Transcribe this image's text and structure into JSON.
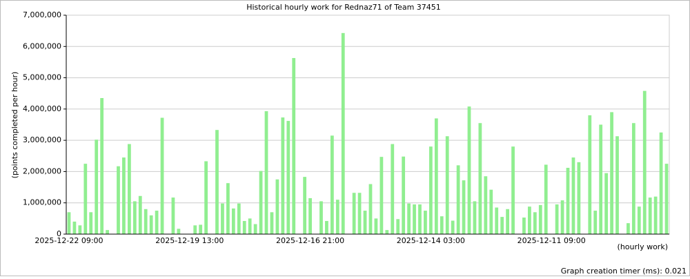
{
  "chart_data": {
    "type": "bar",
    "title": "Historical hourly work for Rednaz71 of Team 37451",
    "y_label": "(points completed per hour)",
    "x_label": "(hourly work)",
    "footer": "Graph creation timer (ms): 0.021",
    "color": "#90ee90",
    "grid": true,
    "categories": [
      "2025-12-22 09:00",
      null,
      null,
      null,
      null,
      null,
      null,
      null,
      null,
      null,
      null,
      null,
      null,
      null,
      null,
      null,
      null,
      null,
      null,
      null,
      null,
      null,
      "2025-12-19 13:00",
      null,
      null,
      null,
      null,
      null,
      null,
      null,
      null,
      null,
      null,
      null,
      null,
      null,
      null,
      null,
      null,
      null,
      null,
      null,
      null,
      null,
      "2025-12-16 21:00",
      null,
      null,
      null,
      null,
      null,
      null,
      null,
      null,
      null,
      null,
      null,
      null,
      null,
      null,
      null,
      null,
      null,
      null,
      null,
      null,
      null,
      "2025-12-14 03:00",
      null,
      null,
      null,
      null,
      null,
      null,
      null,
      null,
      null,
      null,
      null,
      null,
      null,
      null,
      null,
      null,
      null,
      null,
      null,
      null,
      null,
      "2025-12-11 09:00",
      null,
      null,
      null,
      null,
      null,
      null,
      null,
      null,
      null,
      null,
      null,
      null,
      null,
      null,
      null,
      null,
      null,
      null,
      null,
      null,
      null
    ],
    "values": [
      700000,
      400000,
      280000,
      2250000,
      700000,
      3020000,
      4350000,
      130000,
      0,
      2170000,
      2450000,
      2880000,
      1050000,
      1220000,
      800000,
      600000,
      750000,
      3720000,
      0,
      1170000,
      170000,
      0,
      0,
      280000,
      300000,
      2330000,
      0,
      3330000,
      980000,
      1630000,
      820000,
      980000,
      420000,
      500000,
      320000,
      2020000,
      3930000,
      700000,
      1750000,
      3730000,
      3620000,
      5630000,
      0,
      1830000,
      1150000,
      0,
      1050000,
      420000,
      3150000,
      1100000,
      6430000,
      0,
      1320000,
      1320000,
      750000,
      1600000,
      500000,
      2470000,
      130000,
      2880000,
      480000,
      2480000,
      980000,
      950000,
      950000,
      750000,
      2800000,
      3700000,
      570000,
      3130000,
      430000,
      2200000,
      1720000,
      4080000,
      1050000,
      3550000,
      1850000,
      1420000,
      850000,
      550000,
      800000,
      2800000,
      0,
      530000,
      880000,
      700000,
      930000,
      2220000,
      0,
      950000,
      1080000,
      2120000,
      2450000,
      2300000,
      0,
      3800000,
      750000,
      3500000,
      1950000,
      3900000,
      3130000,
      0,
      350000,
      3550000,
      880000,
      4580000,
      1170000,
      1200000,
      3250000,
      2250000
    ],
    "ylim": [
      0,
      7000000
    ],
    "yticks": [
      0,
      {
        "value": 1000000,
        "label": "1,000,000"
      },
      {
        "value": 2000000,
        "label": "2,000,000"
      },
      {
        "value": 3000000,
        "label": "3,000,000"
      },
      {
        "value": 4000000,
        "label": "4,000,000"
      },
      {
        "value": 5000000,
        "label": "5,000,000"
      },
      {
        "value": 6000000,
        "label": "6,000,000"
      },
      {
        "value": 7000000,
        "label": "7,000,000"
      }
    ]
  }
}
